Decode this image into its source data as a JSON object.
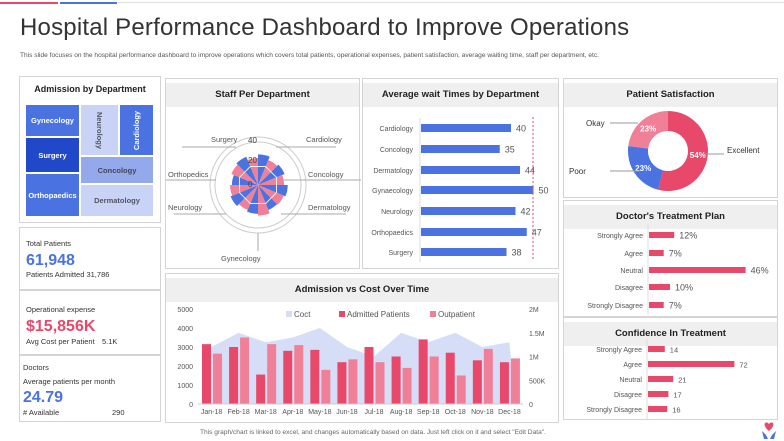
{
  "header": {
    "title": "Hospital Performance Dashboard to Improve Operations",
    "subtitle": "This slide focuses on the hospital performance dashboard to improve operations which covers total patients, operational expenses, patient satisfaction, average waiting time, staff per department, etc.",
    "accent_colors": [
      "#e8486a",
      "#4a72e0"
    ]
  },
  "footer": {
    "note": "This graph/chart is linked to excel,  and changes automatically based on data. Just left click on it and select \"Edit Data\".",
    "logo_icon": "heart-hands-icon"
  },
  "admission_by_department": {
    "title": "Admission  by Department",
    "cells": [
      {
        "label": "Gynecology"
      },
      {
        "label": "Surgery"
      },
      {
        "label": "Orthopaedics"
      },
      {
        "label": "Neurology"
      },
      {
        "label": "Cardiology"
      },
      {
        "label": "Concology"
      },
      {
        "label": "Dermatology"
      }
    ]
  },
  "total_patients": {
    "label": "Total Patients",
    "value": "61,948",
    "sub_label": "Patients Admitted",
    "sub_value": "31,786"
  },
  "operational_expense": {
    "label": "Operational expense",
    "value": "$15,856K",
    "sub_label": "Avg  Cost per Patient",
    "sub_value": "5.1K"
  },
  "doctors": {
    "label": "Doctors",
    "sub_label": "Average  patients per month",
    "value": "24.79",
    "available_label": "# Available",
    "available_value": "290"
  },
  "chart_data": [
    {
      "type": "radar",
      "title": "Staff Per Department",
      "axis_labels": [
        "Surgery",
        "Cardiology",
        "Concology",
        "Dermatology",
        "Gynecology",
        "Neurology",
        "Orthopedics"
      ],
      "ticks": [
        "40",
        "20",
        "0"
      ],
      "rmax": 40,
      "values": [
        34,
        30,
        32,
        29,
        33,
        31,
        30,
        34,
        32,
        30,
        33,
        31,
        29,
        32,
        34,
        30
      ],
      "colors": [
        "#4a72e0",
        "#f08098"
      ]
    },
    {
      "type": "bar",
      "title": "Average wait Times by Department",
      "categories": [
        "Cardiology",
        "Concology",
        "Dermatology",
        "Gynaecology",
        "Neurology",
        "Orthopaedics",
        "Surgery"
      ],
      "values": [
        40,
        35,
        44,
        50,
        42,
        47,
        38
      ],
      "reference_line": 50,
      "color": "#4a72e0"
    },
    {
      "type": "pie",
      "title": "Patient Satisfaction",
      "donut": true,
      "slices": [
        {
          "label": "Excellent",
          "value": 54,
          "text": "54%",
          "color": "#e8486a"
        },
        {
          "label": "Poor",
          "value": 23,
          "text": "23%",
          "color": "#4a72e0"
        },
        {
          "label": "Okay",
          "value": 23,
          "text": "23%",
          "color": "#f08098"
        }
      ]
    },
    {
      "type": "bar",
      "title": "Doctor's Treatment Plan",
      "categories": [
        "Strongly Agree",
        "Agree",
        "Neutral",
        "Disagree",
        "Strongly Disagree"
      ],
      "values": [
        12,
        7,
        46,
        10,
        7
      ],
      "labels": [
        "12%",
        "7%",
        "46%",
        "10%",
        "7%"
      ],
      "color": "#e8486a"
    },
    {
      "type": "bar",
      "title": "Confidence In Treatment",
      "categories": [
        "Strongly Agree",
        "Agree",
        "Neutral",
        "Disagree",
        "Strongly Disagree"
      ],
      "values": [
        14,
        72,
        21,
        17,
        16
      ],
      "labels": [
        "14",
        "72",
        "21",
        "17",
        "16"
      ],
      "color": "#e8486a"
    },
    {
      "type": "bar",
      "title": "Admission  vs Cost Over Time",
      "categories": [
        "Jan-18",
        "Feb-18",
        "Mar-18",
        "Apr-18",
        "May-18",
        "Jun-18",
        "Jul-18",
        "Aug-18",
        "Sep-18",
        "Oct-18",
        "Nov-18",
        "Dec-18"
      ],
      "y_ticks": [
        "0",
        "1000",
        "2000",
        "3000",
        "4000",
        "5000"
      ],
      "ylim": [
        0,
        5000
      ],
      "y2_ticks": [
        "0",
        "500K",
        "1M",
        "1.5M",
        "2M"
      ],
      "y2lim": [
        0,
        2000000
      ],
      "legend_position": "top",
      "series": [
        {
          "name": "Coct",
          "type": "area",
          "axis": "right",
          "color": "#d6def7",
          "values": [
            1200000,
            1500000,
            1300000,
            1400000,
            1600000,
            1200000,
            1000000,
            1500000,
            1300000,
            1500000,
            1200000,
            1300000
          ]
        },
        {
          "name": "Admitted Patients",
          "type": "bar",
          "axis": "left",
          "color": "#e8486a",
          "values": [
            3150,
            3000,
            1550,
            2800,
            2850,
            2200,
            3000,
            2500,
            3400,
            2700,
            2300,
            2200
          ]
        },
        {
          "name": "Outpatient",
          "type": "bar",
          "axis": "left",
          "color": "#f08098",
          "values": [
            2650,
            3500,
            3150,
            3100,
            1800,
            2350,
            2200,
            1900,
            2500,
            1500,
            2900,
            2400
          ]
        }
      ]
    }
  ]
}
